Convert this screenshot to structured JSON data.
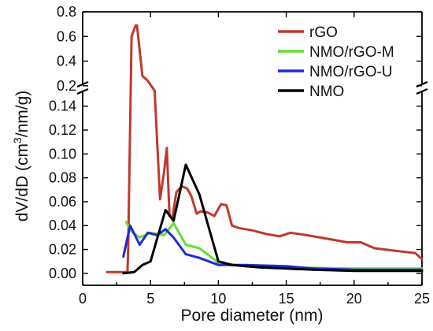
{
  "chart_data": {
    "type": "line",
    "xlabel": "Pore diameter (nm)",
    "ylabel_parts": {
      "pre": "dV/dD (cm",
      "sup": "3",
      "post": "/nm/g)"
    },
    "xlim": [
      0,
      25
    ],
    "xticks": [
      0,
      5,
      10,
      15,
      20,
      25
    ],
    "ylim_lower": [
      -0.01,
      0.155
    ],
    "ylim_upper": [
      0.18,
      0.8
    ],
    "axis_break": "y, between 0.15 and 0.2",
    "yticks_lower": [
      "0.00",
      "0.02",
      "0.04",
      "0.06",
      "0.08",
      "0.10",
      "0.12",
      "0.14"
    ],
    "yticks_upper": [
      "0.2",
      "0.4",
      "0.6",
      "0.8"
    ],
    "legend_position": "top-right",
    "series": [
      {
        "name": "rGO",
        "color": "#c0392b",
        "x": [
          1.8,
          3.3,
          3.35,
          3.6,
          3.9,
          4.0,
          4.4,
          4.8,
          5.3,
          5.7,
          6.0,
          6.2,
          6.4,
          6.6,
          6.9,
          7.3,
          7.7,
          8.0,
          8.4,
          8.7,
          9.2,
          9.7,
          10.2,
          10.6,
          11.0,
          11.5,
          12.5,
          13.5,
          14.5,
          15.3,
          16.5,
          18.0,
          19.5,
          20.5,
          21.5,
          23.0,
          24.5,
          25.0
        ],
        "y": [
          0.001,
          0.001,
          0.02,
          0.6,
          0.69,
          0.69,
          0.28,
          0.24,
          0.16,
          0.062,
          0.085,
          0.105,
          0.048,
          0.046,
          0.068,
          0.073,
          0.071,
          0.065,
          0.05,
          0.052,
          0.051,
          0.048,
          0.058,
          0.057,
          0.04,
          0.038,
          0.036,
          0.033,
          0.031,
          0.034,
          0.032,
          0.029,
          0.026,
          0.026,
          0.021,
          0.019,
          0.017,
          0.012
        ]
      },
      {
        "name": "NMO/rGO-M",
        "color": "#66dd33",
        "x": [
          3.2,
          3.6,
          4.2,
          5.0,
          6.0,
          6.7,
          7.6,
          8.6,
          10.0,
          12.0,
          15.0,
          20.0,
          25.0
        ],
        "y": [
          0.043,
          0.035,
          0.03,
          0.034,
          0.032,
          0.042,
          0.024,
          0.021,
          0.009,
          0.006,
          0.005,
          0.004,
          0.004
        ]
      },
      {
        "name": "NMO/rGO-U",
        "color": "#1f2ad6",
        "x": [
          3.0,
          3.5,
          4.2,
          4.8,
          5.5,
          6.1,
          6.7,
          7.6,
          8.6,
          10.0,
          12.0,
          15.0,
          17.0,
          20.0,
          25.0
        ],
        "y": [
          0.014,
          0.04,
          0.024,
          0.034,
          0.032,
          0.037,
          0.03,
          0.016,
          0.013,
          0.007,
          0.007,
          0.006,
          0.004,
          0.003,
          0.003
        ]
      },
      {
        "name": "NMO",
        "color": "#000000",
        "x": [
          3.0,
          3.8,
          4.4,
          5.0,
          6.1,
          6.7,
          7.6,
          8.6,
          9.2,
          10.0,
          11.0,
          13.0,
          15.0,
          17.0,
          20.0,
          25.0
        ],
        "y": [
          0.0,
          0.001,
          0.007,
          0.01,
          0.053,
          0.044,
          0.091,
          0.066,
          0.042,
          0.01,
          0.007,
          0.005,
          0.004,
          0.003,
          0.002,
          0.002
        ]
      }
    ]
  }
}
